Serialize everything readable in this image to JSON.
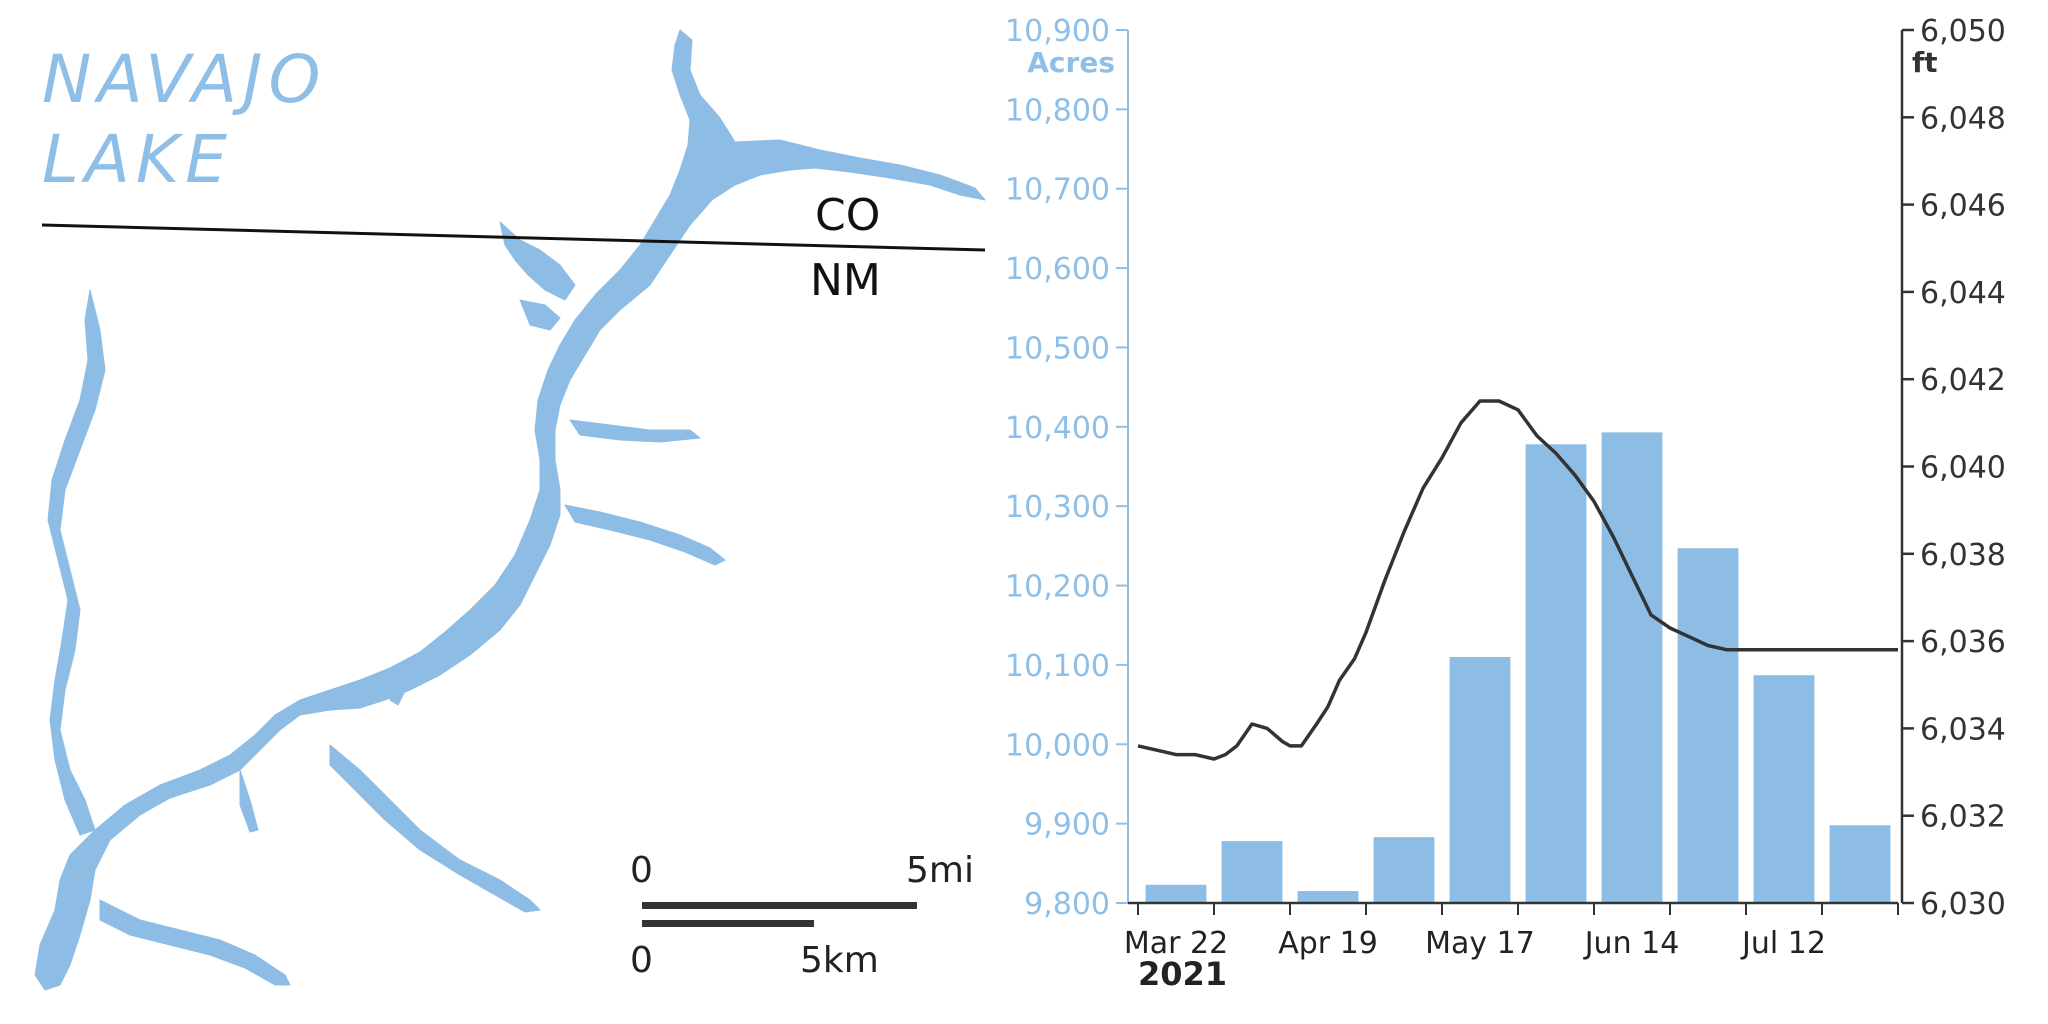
{
  "map": {
    "title_line1": "NAVAJO",
    "title_line2": "LAKE",
    "state_north": "CO",
    "state_south": "NM",
    "scale": {
      "zero_mi": "0",
      "max_mi": "5mi",
      "zero_km": "0",
      "max_km": "5km"
    },
    "colors": {
      "water": "#8dbde4",
      "border": "#111111"
    }
  },
  "chart_data": {
    "type": "bar",
    "year_label": "2021",
    "x_tick_labels": [
      "Mar 22",
      "Apr 19",
      "May 17",
      "Jun 14",
      "Jul 12"
    ],
    "bars": {
      "name": "Acres",
      "values": [
        9823,
        9878,
        9815,
        9883,
        10110,
        10378,
        10393,
        10247,
        10087,
        9898
      ]
    },
    "line": {
      "name": "ft",
      "x_week": [
        0,
        0.5,
        1,
        1.5,
        2,
        2.3,
        2.6,
        3.0,
        3.4,
        3.8,
        4.0,
        4.3,
        4.7,
        5.0,
        5.3,
        5.7,
        6.0,
        6.5,
        7.0,
        7.5,
        8.0,
        8.5,
        9.0,
        9.5,
        10.0,
        10.5,
        11.0,
        11.5,
        12.0,
        12.5,
        13.0,
        13.5,
        14.0,
        14.5,
        15.0,
        15.5,
        16.0,
        16.5,
        17.0,
        17.5,
        18.0,
        18.5,
        19.0,
        19.5,
        20.0,
        20.5,
        21.0,
        21.5,
        22.0
      ],
      "values": [
        6033.6,
        6033.5,
        6033.4,
        6033.4,
        6033.3,
        6033.4,
        6033.6,
        6034.1,
        6034.0,
        6033.7,
        6033.6,
        6033.6,
        6034.1,
        6034.5,
        6035.1,
        6035.6,
        6036.2,
        6037.4,
        6038.5,
        6039.5,
        6040.2,
        6041.0,
        6041.5,
        6041.5,
        6041.3,
        6040.7,
        6040.3,
        6039.8,
        6039.2,
        6038.4,
        6037.5,
        6036.6,
        6036.3,
        6036.1,
        6035.9,
        6035.8,
        6035.8,
        6035.8,
        6035.8,
        6035.8,
        6035.8,
        6035.8,
        6035.8,
        6035.8,
        6035.8,
        6035.8,
        6035.8,
        6035.8,
        6035.8
      ]
    },
    "left_axis": {
      "label": "Acres",
      "min": 9800,
      "max": 10900,
      "ticks": [
        "9,800",
        "9,900",
        "10,000",
        "10,100",
        "10,200",
        "10,300",
        "10,400",
        "10,500",
        "10,600",
        "10,700",
        "10,800",
        "10,900"
      ]
    },
    "right_axis": {
      "label": "ft",
      "min": 6030,
      "max": 6050,
      "ticks": [
        "6,030",
        "6,032",
        "6,034",
        "6,036",
        "6,038",
        "6,040",
        "6,042",
        "6,044",
        "6,046",
        "6,048",
        "6,050"
      ]
    },
    "colors": {
      "bar": "#8dbde4",
      "line": "#333333",
      "left_axis": "#8fbfe6",
      "right_axis": "#333333"
    },
    "grid": false,
    "legend": "none"
  }
}
